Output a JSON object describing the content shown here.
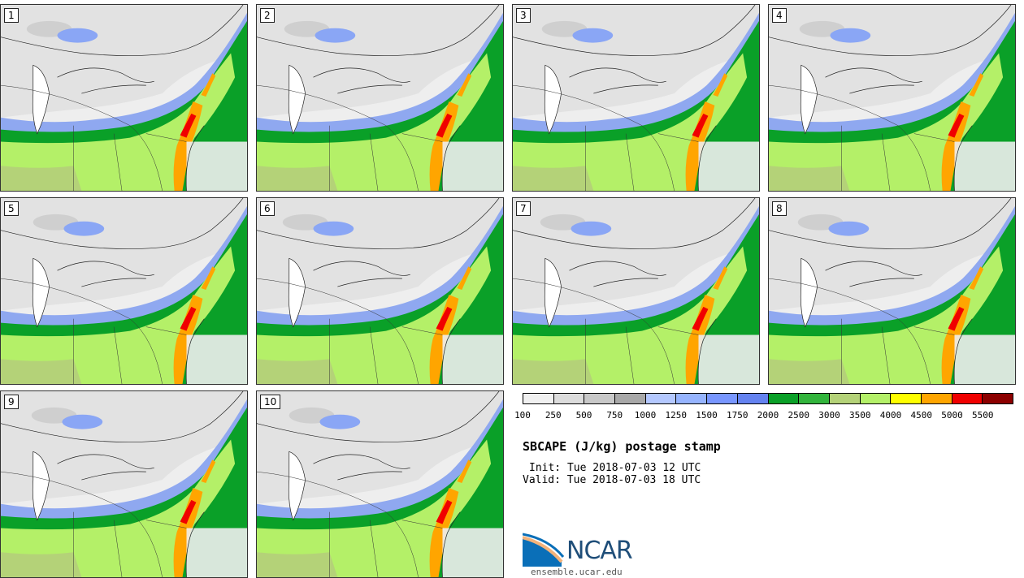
{
  "product": {
    "title": "SBCAPE (J/kg) postage stamp",
    "init": "Init: Tue 2018-07-03 12 UTC",
    "valid": "Valid: Tue 2018-07-03 18 UTC"
  },
  "members": [
    "1",
    "2",
    "3",
    "4",
    "5",
    "6",
    "7",
    "8",
    "9",
    "10"
  ],
  "colorbar": {
    "ticks": [
      "100",
      "250",
      "500",
      "750",
      "1000",
      "1250",
      "1500",
      "1750",
      "2000",
      "2500",
      "3000",
      "3500",
      "4000",
      "4500",
      "5000",
      "5500"
    ],
    "colors": [
      "#f0f0f0",
      "#dcdcdc",
      "#c8c8c8",
      "#a8a8a8",
      "#b4c8ff",
      "#96b4ff",
      "#7896ff",
      "#6482f0",
      "#0aa028",
      "#32b43c",
      "#b4d278",
      "#b4f068",
      "#ffff00",
      "#ffa500",
      "#f00000",
      "#8c0000"
    ]
  },
  "branding": {
    "logo_text": "NCAR",
    "url": "ensemble.ucar.edu"
  }
}
